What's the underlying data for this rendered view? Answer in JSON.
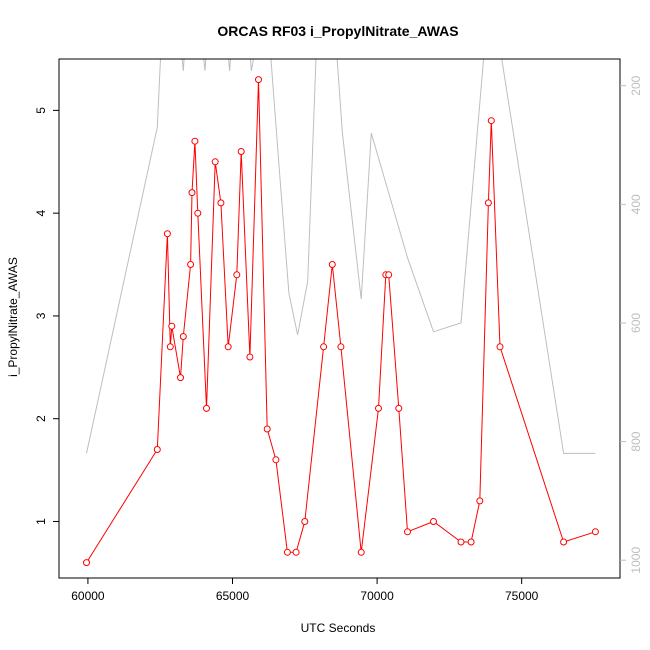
{
  "chart_data": {
    "type": "line",
    "title": "ORCAS RF03 i_PropylNitrate_AWAS",
    "xlabel": "UTC Seconds",
    "ylabel": "i_PropylNitrate_AWAS",
    "xlim": [
      59000,
      78400
    ],
    "ylim": [
      0.45,
      5.5
    ],
    "x_ticks": [
      60000,
      65000,
      70000,
      75000
    ],
    "y_ticks": [
      1,
      2,
      3,
      4,
      5
    ],
    "grid": false,
    "colors": {
      "series": "#ff0000",
      "background_series": "#bebebe",
      "right_axis": "#bebebe",
      "axis": "#000000"
    },
    "series": [
      {
        "x": [
          59950,
          62400,
          62750,
          62850,
          62900,
          63200,
          63300,
          63550,
          63600,
          63700,
          63800,
          64100,
          64400,
          64600,
          64850,
          65150,
          65300,
          65600,
          65900,
          66200,
          66500,
          66900,
          67200,
          67500,
          68150,
          68450,
          68750,
          69450,
          70050,
          70300,
          70400,
          70750,
          71050,
          71950,
          72900,
          73250,
          73550,
          73850,
          73950,
          74250,
          76450,
          77550
        ],
        "y": [
          0.6,
          1.7,
          3.8,
          2.7,
          2.9,
          2.4,
          2.8,
          3.5,
          4.2,
          4.7,
          4.0,
          2.1,
          4.5,
          4.1,
          2.7,
          3.4,
          4.6,
          2.6,
          5.3,
          1.9,
          1.6,
          0.7,
          0.7,
          1.0,
          2.7,
          3.5,
          2.7,
          0.7,
          2.1,
          3.4,
          3.4,
          2.1,
          0.9,
          1.0,
          0.8,
          0.8,
          1.2,
          4.1,
          4.9,
          2.7,
          0.8,
          0.9
        ]
      }
    ],
    "secondary_axis": {
      "side": "right",
      "reversed": true,
      "ylim": [
        1030,
        155
      ],
      "ticks": [
        200,
        400,
        600,
        800,
        1000
      ],
      "series": {
        "x": [
          59950,
          62400,
          62800,
          63150,
          63300,
          63500,
          63800,
          64050,
          64200,
          64750,
          64900,
          65200,
          65550,
          65650,
          66150,
          66600,
          66950,
          67250,
          67600,
          68050,
          68450,
          68800,
          69450,
          69800,
          71050,
          71950,
          72900,
          73850,
          74200,
          76450,
          77550
        ],
        "y": [
          820,
          270,
          -150,
          100,
          175,
          20,
          60,
          175,
          60,
          90,
          175,
          -20,
          100,
          175,
          40,
          330,
          550,
          620,
          530,
          -60,
          40,
          280,
          560,
          280,
          490,
          615,
          600,
          60,
          120,
          820,
          820
        ]
      }
    }
  }
}
